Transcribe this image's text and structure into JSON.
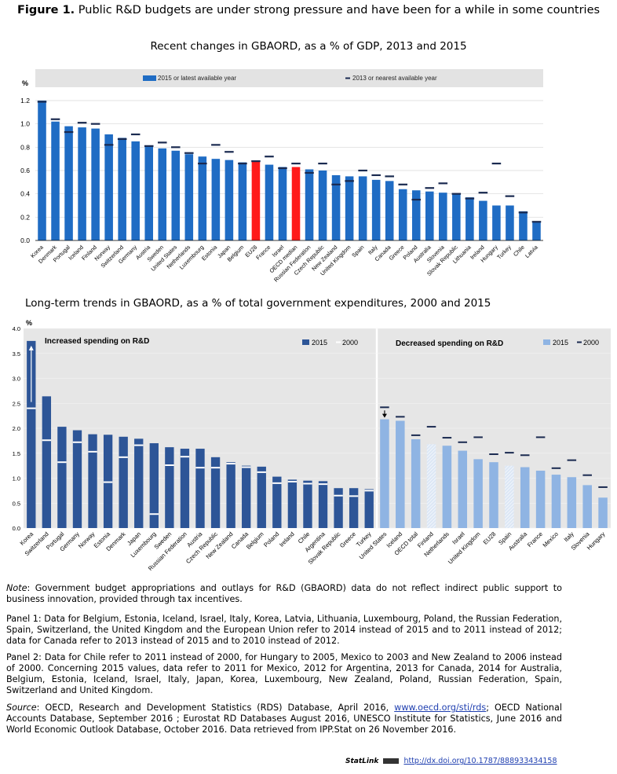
{
  "header": {
    "figure_label": "Figure 1.",
    "title": "Public R&D budgets are under strong pressure and have been for a while in some countries"
  },
  "notes": {
    "note_label": "Note",
    "note_text": ": Government budget appropriations and outlays for R&D (GBAORD) data do not reflect indirect public support to business innovation, provided through tax incentives.",
    "panel1": "Panel 1: Data for Belgium, Estonia, Iceland, Israel, Italy, Korea, Latvia, Lithuania, Luxembourg, Poland, the Russian Federation, Spain, Switzerland, the United Kingdom and the European Union refer to 2014 instead of 2015 and to 2011 instead of 2012; data for Canada refer to 2013 instead of 2015 and to 2010 instead of 2012.",
    "panel2": "Panel 2:  Data for Chile refer to 2011 instead of 2000, for Hungary to 2005, Mexico to 2003 and New Zealand to 2006 instead of 2000. Concerning 2015 values, data refer to 2011 for Mexico, 2012 for Argentina, 2013 for Canada, 2014 for Australia, Belgium, Estonia, Iceland, Israel, Italy, Japan, Korea, Luxembourg, New Zealand, Poland, Russian Federation, Spain, Switzerland and United Kingdom.",
    "source_label": "Source",
    "source_text_1": ": OECD, Research and Development Statistics (RDS) Database, April 2016, ",
    "source_link": "www.oecd.org/sti/rds",
    "source_text_2": "; OECD National Accounts Database, September 2016 ; Eurostat RD Databases August 2016, UNESCO Institute for Statistics, June 2016 and World Economic Outlook Database, October 2016. Data retrieved from IPP.Stat on 26 November 2016.",
    "statlink_label": "StatLink",
    "statlink_url": "http://dx.doi.org/10.1787/888933434158"
  },
  "chart_data": [
    {
      "type": "bar",
      "title": "Recent changes in GBAORD, as a % of GDP, 2013 and 2015",
      "ylabel": "%",
      "ylim": [
        0,
        1.2
      ],
      "yticks": [
        "0.0",
        "0.2",
        "0.4",
        "0.6",
        "0.8",
        "1.0",
        "1.2"
      ],
      "legend": [
        "2015 or latest available year",
        "2013 or nearest available year"
      ],
      "legend_position": "top",
      "colors": {
        "bar": "#1f6cc4",
        "highlight": "#ff1a1a",
        "marker": "#1a2a50",
        "legend_bg": "#e3e3e3"
      },
      "categories": [
        "Korea",
        "Denmark",
        "Portugal",
        "Iceland",
        "Finland",
        "Norway",
        "Switzerland",
        "Germany",
        "Austria",
        "Sweden",
        "United States",
        "Netherlands",
        "Luxembourg",
        "Estonia",
        "Japan",
        "Belgium",
        "EU28",
        "France",
        "Israel",
        "OECD median",
        "Russian Federation",
        "Czech Republic",
        "New Zealand",
        "United Kingdom",
        "Spain",
        "Italy",
        "Canada",
        "Greece",
        "Poland",
        "Australia",
        "Slovenia",
        "Slovak Republic",
        "Lithuania",
        "Ireland",
        "Hungary",
        "Turkey",
        "Chile",
        "Latvia"
      ],
      "highlight": [
        "EU28",
        "OECD median"
      ],
      "series": [
        {
          "name": "2015 or latest available year",
          "values": [
            1.2,
            1.02,
            0.98,
            0.97,
            0.96,
            0.91,
            0.88,
            0.85,
            0.81,
            0.79,
            0.77,
            0.74,
            0.72,
            0.7,
            0.69,
            0.67,
            0.68,
            0.65,
            0.63,
            0.63,
            0.61,
            0.6,
            0.56,
            0.55,
            0.55,
            0.52,
            0.51,
            0.44,
            0.43,
            0.42,
            0.41,
            0.4,
            0.37,
            0.34,
            0.3,
            0.3,
            0.25,
            0.16
          ]
        },
        {
          "name": "2013 or nearest available year",
          "values": [
            1.19,
            1.04,
            0.93,
            1.01,
            1.0,
            0.82,
            0.87,
            0.91,
            0.81,
            0.84,
            0.8,
            0.75,
            0.66,
            0.82,
            0.76,
            0.66,
            0.68,
            0.72,
            0.62,
            0.66,
            0.58,
            0.66,
            0.48,
            0.51,
            0.6,
            0.56,
            0.55,
            0.48,
            0.35,
            0.45,
            0.49,
            0.4,
            0.36,
            0.41,
            0.66,
            0.38,
            0.24,
            0.16
          ]
        }
      ]
    },
    {
      "type": "bar",
      "title": "Long-term trends in GBAORD, as a % of total government expenditures, 2000 and 2015",
      "ylabel": "%",
      "ylim": [
        0,
        4.0
      ],
      "yticks": [
        "0.0",
        "0.5",
        "1.0",
        "1.5",
        "2.0",
        "2.5",
        "3.0",
        "3.5",
        "4.0"
      ],
      "panels": [
        {
          "title": "Increased spending on R&D",
          "legend": [
            "2015",
            "2000"
          ],
          "colors": {
            "bar": "#2d5597",
            "marker": "#ffffff"
          },
          "categories": [
            "Korea",
            "Switzerland",
            "Portugal",
            "Germany",
            "Norway",
            "Estonia",
            "Denmark",
            "Japan",
            "Luxembourg",
            "Sweden",
            "Russian Federation",
            "Austria",
            "Czech Republic",
            "New Zealand",
            "Canada",
            "Belgium",
            "Poland",
            "Ireland",
            "Chile",
            "Argentina",
            "Slovak Republic",
            "Greece",
            "Turkey"
          ],
          "series": [
            {
              "name": "2015",
              "values": [
                3.75,
                2.64,
                2.03,
                1.96,
                1.88,
                1.87,
                1.83,
                1.79,
                1.7,
                1.62,
                1.59,
                1.59,
                1.42,
                1.32,
                1.25,
                1.23,
                1.03,
                0.97,
                0.95,
                0.94,
                0.8,
                0.8,
                0.78
              ]
            },
            {
              "name": "2000",
              "values": [
                2.4,
                1.76,
                1.32,
                1.72,
                1.53,
                0.92,
                1.42,
                1.66,
                0.28,
                1.26,
                1.43,
                1.21,
                1.21,
                1.29,
                1.22,
                1.12,
                0.9,
                0.93,
                0.89,
                0.88,
                0.65,
                0.64,
                0.75
              ]
            }
          ]
        },
        {
          "title": "Decreased spending on R&D",
          "legend": [
            "2015",
            "2000"
          ],
          "colors": {
            "bar": "#8fb4e3",
            "marker": "#1a2a50",
            "hatched": "#dce7f5"
          },
          "categories": [
            "United States",
            "Iceland",
            "OECD total",
            "Finland",
            "Netherlands",
            "Israel",
            "United Kingdom",
            "EU28",
            "Spain",
            "Australia",
            "France",
            "Mexico",
            "Italy",
            "Slovenia",
            "Hungary"
          ],
          "hatched": [
            "Finland",
            "Spain"
          ],
          "series": [
            {
              "name": "2015",
              "values": [
                2.18,
                2.15,
                1.78,
                1.68,
                1.65,
                1.55,
                1.38,
                1.32,
                1.25,
                1.22,
                1.15,
                1.07,
                1.02,
                0.86,
                0.61
              ]
            },
            {
              "name": "2000",
              "values": [
                2.42,
                2.23,
                1.86,
                2.03,
                1.81,
                1.72,
                1.82,
                1.48,
                1.51,
                1.46,
                1.82,
                1.2,
                1.36,
                1.06,
                0.82
              ]
            }
          ]
        }
      ]
    }
  ]
}
